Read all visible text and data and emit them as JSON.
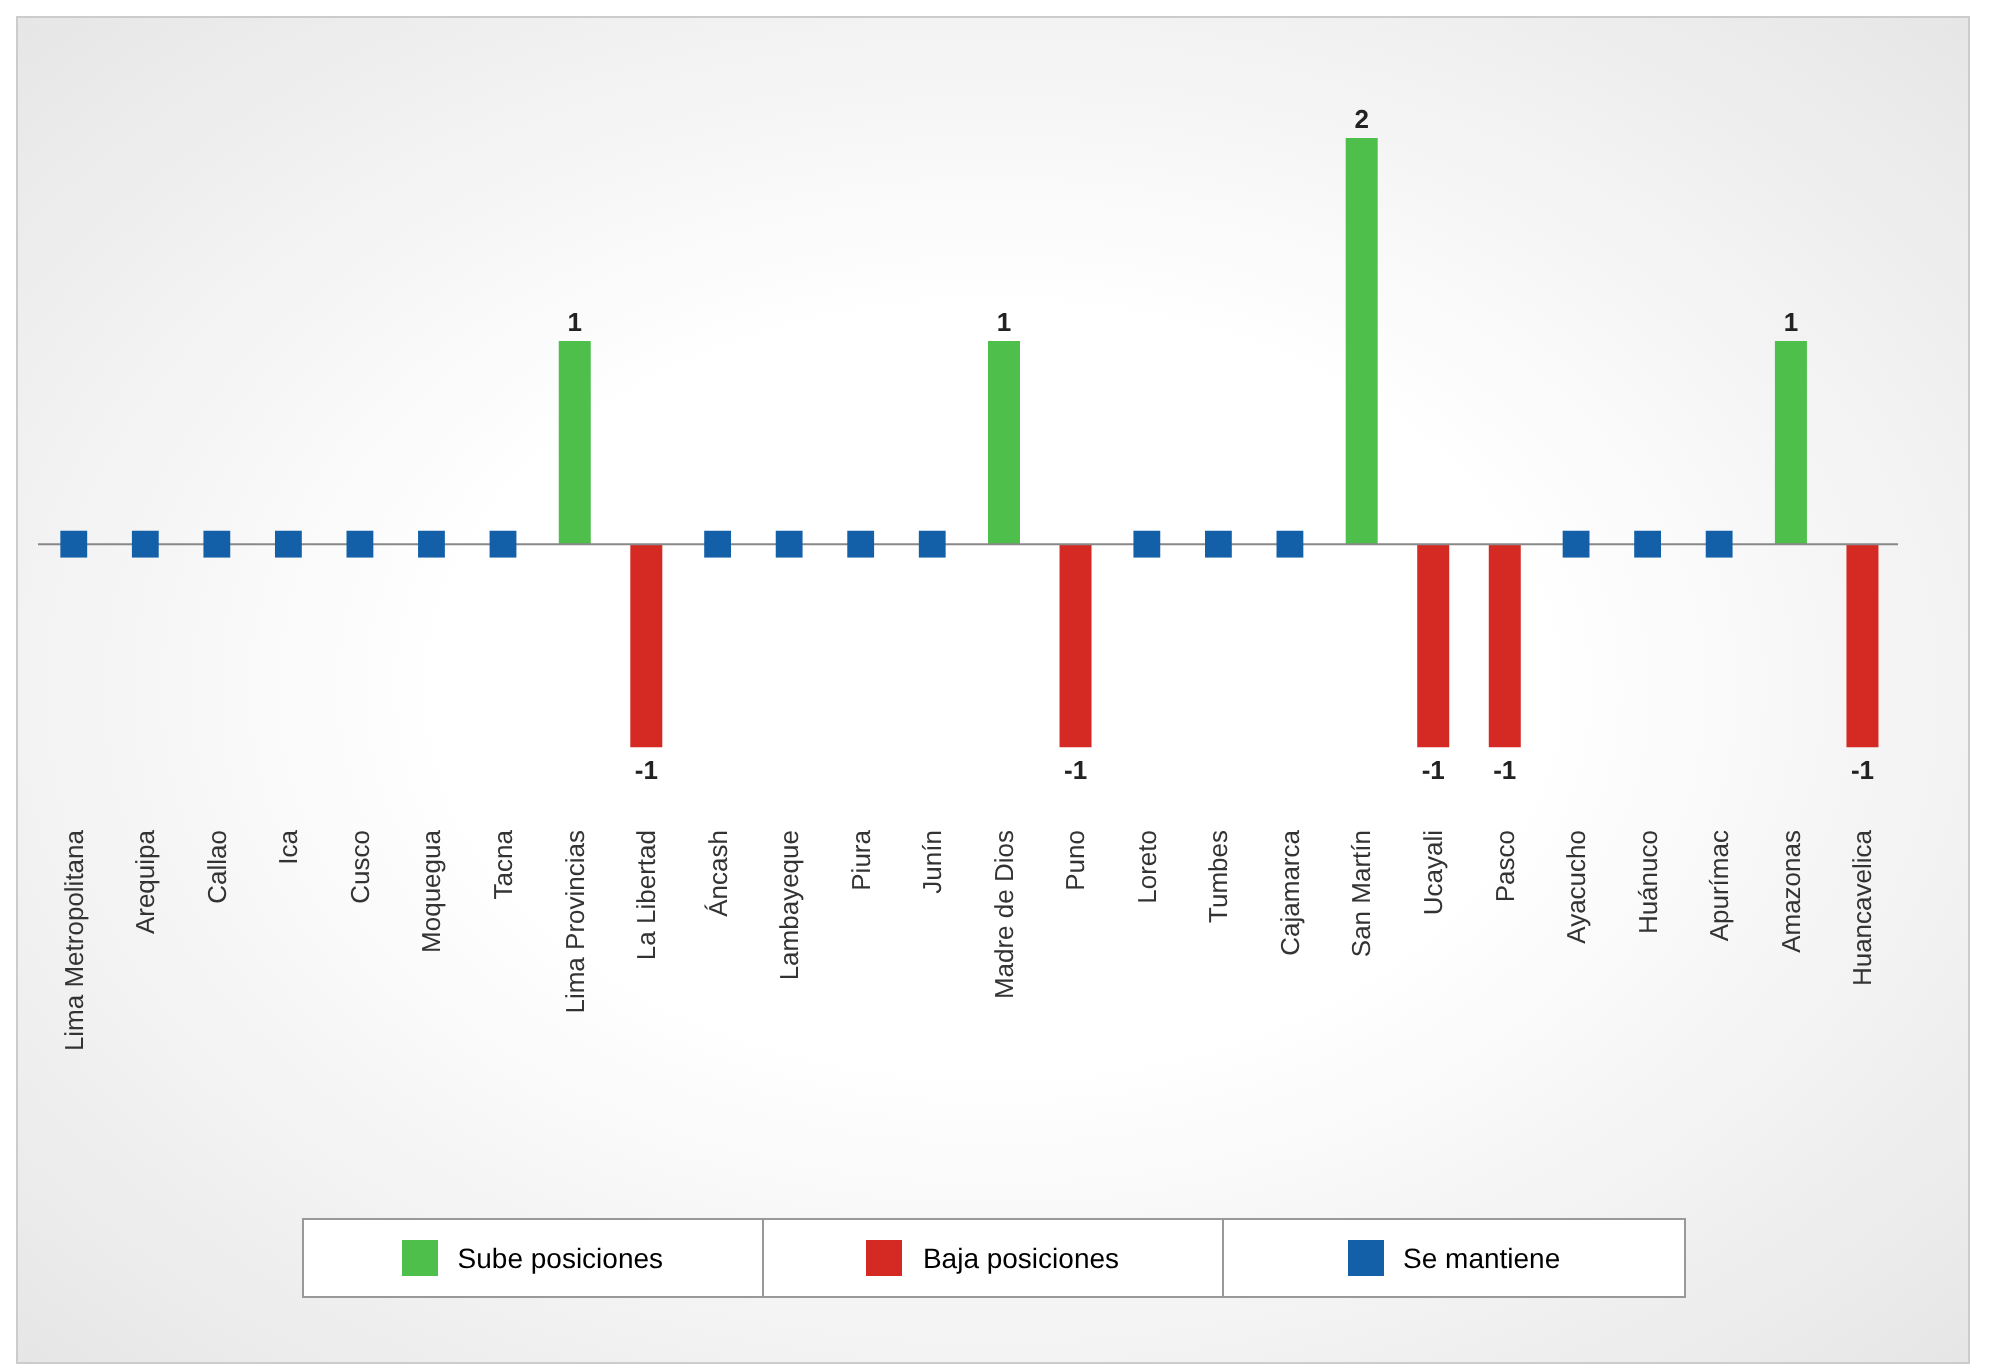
{
  "chart_data": {
    "type": "bar",
    "legend": "bottom",
    "categories": [
      "Lima Metropolitana",
      "Arequipa",
      "Callao",
      "Ica",
      "Cusco",
      "Moquegua",
      "Tacna",
      "Lima Provincias",
      "La Libertad",
      "Áncash",
      "Lambayeque",
      "Piura",
      "Junín",
      "Madre de Dios",
      "Puno",
      "Loreto",
      "Tumbes",
      "Cajamarca",
      "San Martín",
      "Ucayali",
      "Pasco",
      "Ayacucho",
      "Huánuco",
      "Apurímac",
      "Amazonas",
      "Huancavelica"
    ],
    "series": [
      {
        "name": "Sube posiciones",
        "color": "#4dbf4a",
        "values": [
          null,
          null,
          null,
          null,
          null,
          null,
          null,
          1,
          null,
          null,
          null,
          null,
          null,
          1,
          null,
          null,
          null,
          null,
          2,
          null,
          null,
          null,
          null,
          null,
          1,
          null
        ],
        "value_labels": [
          null,
          null,
          null,
          null,
          null,
          null,
          null,
          "1",
          null,
          null,
          null,
          null,
          null,
          "1",
          null,
          null,
          null,
          null,
          "2",
          null,
          null,
          null,
          null,
          null,
          "1",
          null
        ]
      },
      {
        "name": "Baja posiciones",
        "color": "#d42a23",
        "values": [
          null,
          null,
          null,
          null,
          null,
          null,
          null,
          null,
          -1,
          null,
          null,
          null,
          null,
          null,
          -1,
          null,
          null,
          null,
          null,
          -1,
          -1,
          null,
          null,
          null,
          null,
          -1
        ],
        "value_labels": [
          null,
          null,
          null,
          null,
          null,
          null,
          null,
          null,
          "-1",
          null,
          null,
          null,
          null,
          null,
          "-1",
          null,
          null,
          null,
          null,
          "-1",
          "-1",
          null,
          null,
          null,
          null,
          "-1"
        ]
      },
      {
        "name": "Se mantiene",
        "color": "#1460a8",
        "type": "scatter",
        "marker": "square",
        "values": [
          0,
          0,
          0,
          0,
          0,
          0,
          0,
          null,
          null,
          0,
          0,
          0,
          0,
          null,
          null,
          0,
          0,
          0,
          null,
          null,
          null,
          0,
          0,
          0,
          null,
          null
        ]
      }
    ]
  }
}
